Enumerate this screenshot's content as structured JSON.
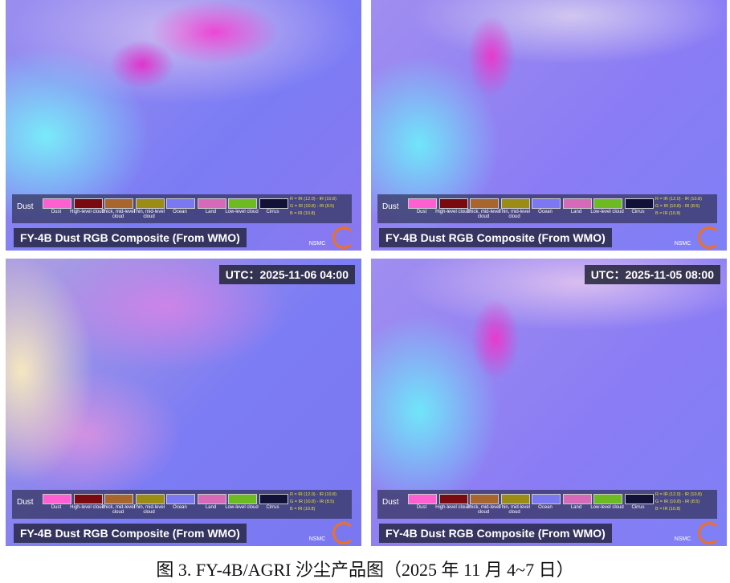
{
  "panels": [
    {
      "title": "FY-4B Dust RGB Composite (From WMO)"
    },
    {
      "title": "FY-4B Dust RGB Composite (From WMO)"
    },
    {
      "title": "FY-4B Dust RGB Composite (From WMO)",
      "utc": "UTC：2025-11-06 04:00"
    },
    {
      "title": "FY-4B Dust RGB Composite (From WMO)",
      "utc": "UTC：2025-11-05 08:00"
    }
  ],
  "legend": {
    "heading": "Dust",
    "items": [
      {
        "label": "Dust",
        "color": "#ff5fd0"
      },
      {
        "label": "High-level cloud",
        "color": "#7a0a10"
      },
      {
        "label": "Thick, mid-level cloud",
        "color": "#a8662e"
      },
      {
        "label": "Thin, mid-level cloud",
        "color": "#9a8c14"
      },
      {
        "label": "Ocean",
        "color": "#7b78f2"
      },
      {
        "label": "Land",
        "color": "#d66ab8"
      },
      {
        "label": "Low-level cloud",
        "color": "#6cbb22"
      },
      {
        "label": "Cirrus",
        "color": "#121238"
      }
    ],
    "formulas": [
      "R = IR (12.0) - IR (10.8)",
      "G = IR (10.8) - IR (8.5)",
      "B = IR (10.8)"
    ]
  },
  "logo": "NSMC",
  "caption": "图 3. FY-4B/AGRI 沙尘产品图（2025 年 11 月 4~7 日）"
}
